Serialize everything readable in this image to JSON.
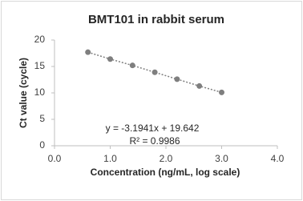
{
  "chart_data": {
    "type": "scatter",
    "title": "BMT101 in rabbit serum",
    "x_label": "Concentration (ng/mL, log scale)",
    "y_label": "Ct value (cycle)",
    "x": [
      0.6,
      1.0,
      1.4,
      1.8,
      2.2,
      2.6,
      3.0
    ],
    "values": [
      17.7,
      16.4,
      15.2,
      13.9,
      12.6,
      11.3,
      10.1
    ],
    "color": "#7f7f7f",
    "xlim": [
      0,
      4
    ],
    "xticks": [
      {
        "value": 0,
        "label": "0.0"
      },
      {
        "value": 1,
        "label": "1.0"
      },
      {
        "value": 2,
        "label": "2.0"
      },
      {
        "value": 3,
        "label": "3.0"
      },
      {
        "value": 4,
        "label": "4.0"
      }
    ],
    "ylim": [
      0,
      20
    ],
    "yticks": [
      0,
      5,
      10,
      15,
      20
    ],
    "annotations": [
      "y = -3.1941x + 19.642",
      "R² = 0.9986"
    ]
  }
}
